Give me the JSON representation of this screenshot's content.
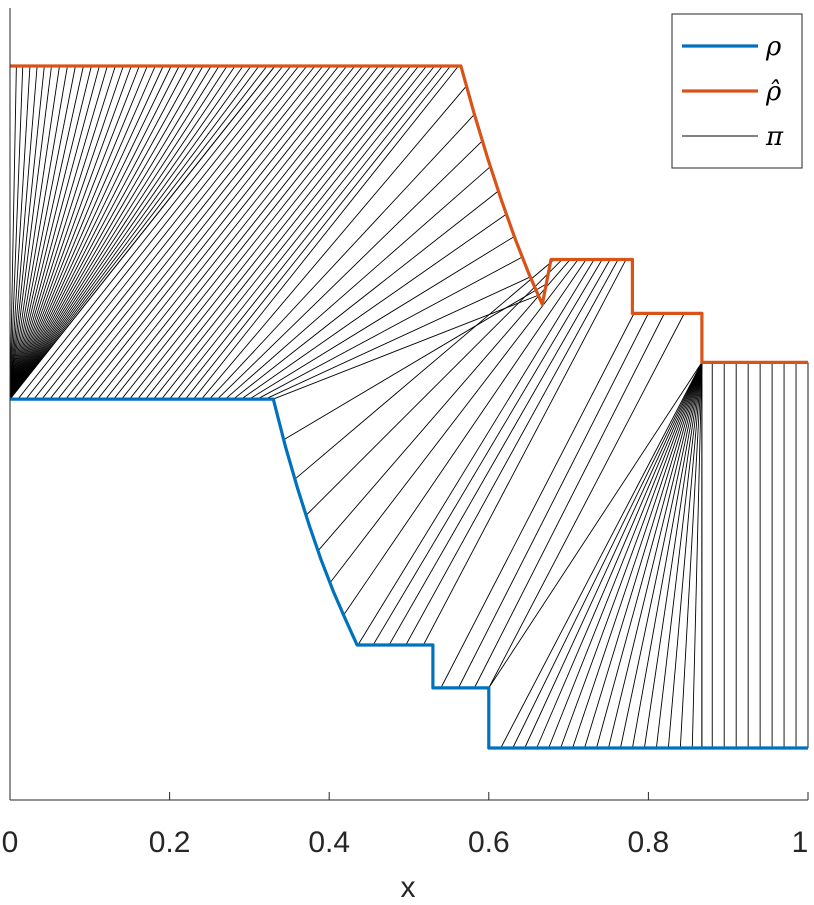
{
  "chart_data": {
    "type": "line",
    "title": "",
    "xlabel": "x",
    "ylabel": "",
    "xlim": [
      0,
      1
    ],
    "ylim": [
      0,
      1
    ],
    "xticks": [
      0,
      0.2,
      0.4,
      0.6,
      0.8,
      1
    ],
    "xtick_labels": [
      "0",
      "0.2",
      "0.4",
      "0.6",
      "0.8",
      "1"
    ],
    "grid": false,
    "legend_position": "top-right",
    "colors": {
      "rho": "#0072BD",
      "rho_hat": "#D95319",
      "pi": "#000000"
    },
    "series": [
      {
        "name": "ρ",
        "key": "rho",
        "x": [
          0,
          0.33,
          0.345,
          0.36,
          0.375,
          0.39,
          0.405,
          0.42,
          0.435,
          0.53,
          0.53,
          0.6,
          0.6,
          1
        ],
        "y": [
          0.518,
          0.518,
          0.45,
          0.39,
          0.335,
          0.285,
          0.24,
          0.2,
          0.162,
          0.162,
          0.1,
          0.1,
          0.013,
          0.013
        ]
      },
      {
        "name": "ρ̂",
        "key": "rho_hat",
        "x": [
          0,
          0.565,
          0.582,
          0.599,
          0.616,
          0.633,
          0.65,
          0.667,
          0.678,
          0.78,
          0.78,
          0.867,
          0.867,
          1
        ],
        "y": [
          1.0,
          1.0,
          0.93,
          0.865,
          0.805,
          0.75,
          0.7,
          0.655,
          0.72,
          0.72,
          0.642,
          0.642,
          0.571,
          0.571
        ]
      }
    ],
    "transport_lines": {
      "name": "π",
      "source_fan": {
        "x": 0,
        "y": 0.518,
        "y_hat": 1.0,
        "targets_hat_x": [
          0.0,
          0.008,
          0.016,
          0.025,
          0.034,
          0.043,
          0.052,
          0.062,
          0.072,
          0.082,
          0.092,
          0.102,
          0.112,
          0.122,
          0.132,
          0.142,
          0.152,
          0.162,
          0.172,
          0.182,
          0.192,
          0.202,
          0.212,
          0.222,
          0.232,
          0.242,
          0.252,
          0.262,
          0.272,
          0.282,
          0.292,
          0.302,
          0.312,
          0.322,
          0.332
        ]
      },
      "parallel": {
        "rho_x": [
          0.0,
          0.01,
          0.02,
          0.03,
          0.04,
          0.05,
          0.06,
          0.07,
          0.08,
          0.09,
          0.1,
          0.11,
          0.12,
          0.13,
          0.14,
          0.15,
          0.16,
          0.17,
          0.18,
          0.19,
          0.2,
          0.21,
          0.22,
          0.23,
          0.24,
          0.25,
          0.26,
          0.27,
          0.28,
          0.29,
          0.3,
          0.31,
          0.32,
          0.33,
          0.343,
          0.357,
          0.371,
          0.386,
          0.401,
          0.418,
          0.436,
          0.455,
          0.475,
          0.496,
          0.518,
          0.54,
          0.562,
          0.582,
          0.6
        ],
        "rho_hat_x": [
          0.332,
          0.342,
          0.352,
          0.362,
          0.372,
          0.382,
          0.392,
          0.402,
          0.412,
          0.422,
          0.432,
          0.442,
          0.452,
          0.462,
          0.472,
          0.482,
          0.492,
          0.502,
          0.512,
          0.522,
          0.532,
          0.542,
          0.552,
          0.562,
          0.572,
          0.582,
          0.592,
          0.602,
          0.612,
          0.622,
          0.632,
          0.642,
          0.652,
          0.662,
          0.672,
          0.682,
          0.692,
          0.702,
          0.712,
          0.722,
          0.732,
          0.742,
          0.752,
          0.762,
          0.772,
          0.782,
          0.8,
          0.82,
          0.845
        ]
      },
      "target_fan": {
        "x_hat": 0.867,
        "y_hat": 0.571,
        "sources_rho_x": [
          0.6,
          0.615,
          0.63,
          0.645,
          0.66,
          0.675,
          0.69,
          0.705,
          0.72,
          0.735,
          0.75,
          0.765,
          0.78,
          0.795,
          0.81,
          0.825,
          0.84,
          0.855,
          0.867
        ]
      },
      "vertical_x": [
        0.867,
        0.88,
        0.895,
        0.91,
        0.925,
        0.94,
        0.955,
        0.97,
        0.985,
        1.0
      ]
    },
    "legend": [
      "ρ",
      "ρ̂",
      "π"
    ]
  }
}
